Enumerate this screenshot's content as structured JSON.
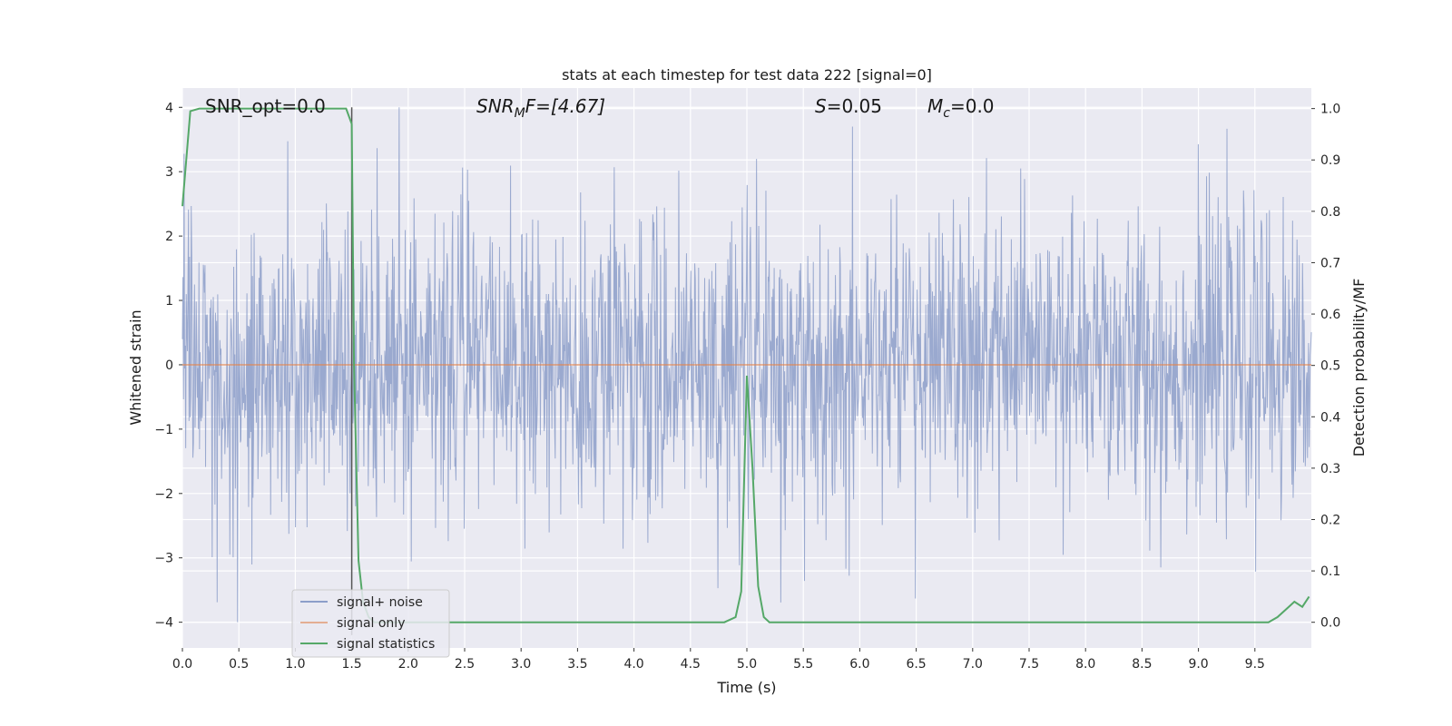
{
  "chart_data": {
    "type": "line",
    "title": "stats at each timestep for test data 222 [signal=0]",
    "xlabel": "Time (s)",
    "ylabel": "Whitened strain",
    "y2label": "Detection probability/MF",
    "xlim": [
      0,
      10
    ],
    "ylim": [
      -4.4,
      4.3
    ],
    "y2lim": [
      -0.05,
      1.04
    ],
    "xticks": [
      "0.0",
      "0.5",
      "1.0",
      "1.5",
      "2.0",
      "2.5",
      "3.0",
      "3.5",
      "4.0",
      "4.5",
      "5.0",
      "5.5",
      "6.0",
      "6.5",
      "7.0",
      "7.5",
      "8.0",
      "8.5",
      "9.0",
      "9.5"
    ],
    "yticks": [
      "4",
      "3",
      "2",
      "1",
      "0",
      "−1",
      "−2",
      "−3",
      "−4"
    ],
    "y2ticks": [
      "1.0",
      "0.9",
      "0.8",
      "0.7",
      "0.6",
      "0.5",
      "0.4",
      "0.3",
      "0.2",
      "0.1",
      "0.0"
    ],
    "grid": true,
    "legend_position": "lower-left",
    "colors": {
      "noise": "#8c9ec9",
      "signal_only": "#dd8452",
      "statistics": "#55a868",
      "background": "#eaeaf2",
      "marker_line": "#555555"
    },
    "annotations": {
      "snr_opt": "SNR_opt=0.0",
      "snr_mf_base": "SNR",
      "snr_mf_sub": "M",
      "snr_mf_rest": "F=[4.67]",
      "s_var": "S",
      "s_value": "=0.05",
      "mc_var": "M",
      "mc_sub": "c",
      "mc_value": "=0.0"
    },
    "marker_time": 1.5,
    "series": [
      {
        "name": "signal+ noise",
        "description_envelope": "white noise, sigma about 1, range about -4 to 4, 2048 samples over 10 s"
      },
      {
        "name": "signal only",
        "x": [
          0,
          10
        ],
        "y": [
          0,
          0
        ]
      },
      {
        "name": "signal statistics",
        "axis": "right",
        "x": [
          0.0,
          0.07,
          0.15,
          0.3,
          0.5,
          0.75,
          1.0,
          1.25,
          1.45,
          1.5,
          1.52,
          1.56,
          1.6,
          1.65,
          1.7,
          2.0,
          3.0,
          4.0,
          4.7,
          4.8,
          4.9,
          4.95,
          5.0,
          5.05,
          5.1,
          5.15,
          5.2,
          5.5,
          6.0,
          7.0,
          8.0,
          9.0,
          9.5,
          9.62,
          9.7,
          9.8,
          9.85,
          9.92,
          9.98
        ],
        "y": [
          0.81,
          0.995,
          1.0,
          1.0,
          1.0,
          1.0,
          1.0,
          1.0,
          1.0,
          0.97,
          0.5,
          0.12,
          0.04,
          0.01,
          0.0,
          0.0,
          0.0,
          0.0,
          0.0,
          0.0,
          0.01,
          0.06,
          0.48,
          0.3,
          0.07,
          0.01,
          0.0,
          0.0,
          0.0,
          0.0,
          0.0,
          0.0,
          0.0,
          0.0,
          0.01,
          0.03,
          0.04,
          0.03,
          0.05
        ]
      }
    ]
  }
}
